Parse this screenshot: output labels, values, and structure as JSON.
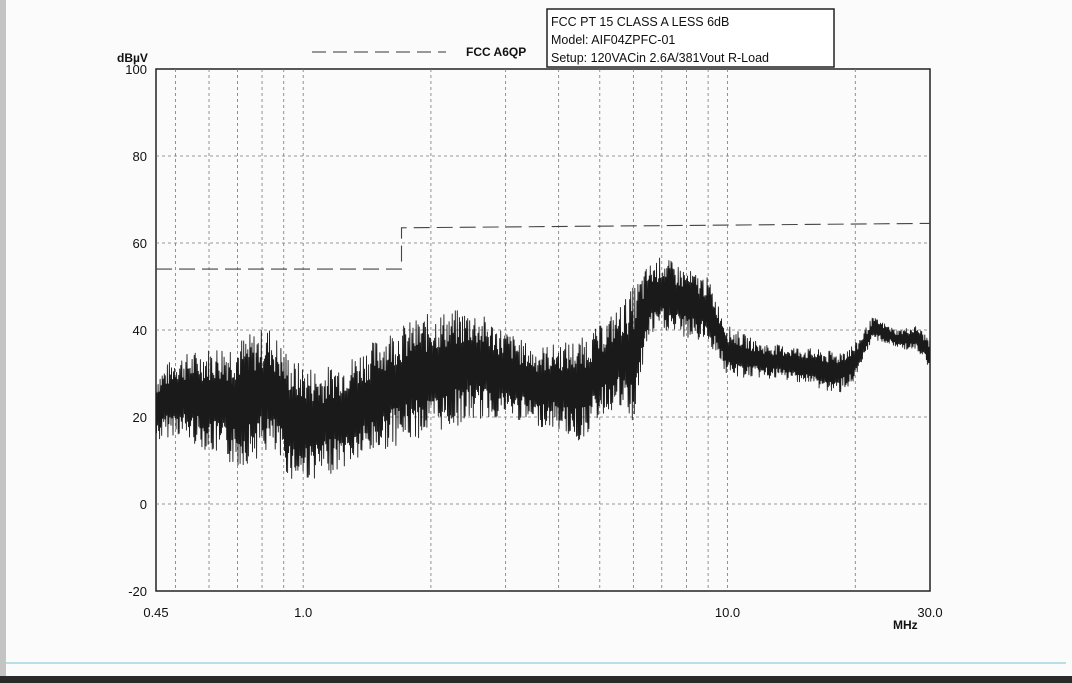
{
  "chart_data": {
    "type": "line",
    "ylabel": "dBµV",
    "xlabel": "MHz",
    "x_scale": "log",
    "xlim": [
      0.45,
      30.0
    ],
    "ylim": [
      -20,
      100
    ],
    "y_ticks": [
      "100",
      "80",
      "60",
      "40",
      "20",
      "0",
      "-20"
    ],
    "x_tick_labels": [
      {
        "value": 0.45,
        "label": "0.45"
      },
      {
        "value": 1.0,
        "label": "1.0"
      },
      {
        "value": 10.0,
        "label": "10.0"
      },
      {
        "value": 30.0,
        "label": "30.0"
      }
    ],
    "grid": true,
    "legend": {
      "label": "FCC A6QP",
      "style": "dashed",
      "placement": "top-center"
    },
    "info_box": [
      "FCC PT 15 CLASS A LESS 6dB",
      "Model: AIF04ZPFC-01",
      "Setup: 120VACin 2.6A/381Vout  R-Load"
    ],
    "series": [
      {
        "name": "FCC A6QP",
        "style": "dashed",
        "points": [
          {
            "x": 0.45,
            "y": 54
          },
          {
            "x": 1.705,
            "y": 54
          },
          {
            "x": 1.705,
            "y": 63.5
          },
          {
            "x": 30.0,
            "y": 64.5
          }
        ]
      },
      {
        "style": "solid",
        "envelope": [
          {
            "x": 0.45,
            "lo": 14,
            "hi": 30
          },
          {
            "x": 0.5,
            "lo": 16,
            "hi": 34
          },
          {
            "x": 0.6,
            "lo": 12,
            "hi": 36
          },
          {
            "x": 0.7,
            "lo": 8,
            "hi": 38
          },
          {
            "x": 0.83,
            "lo": 12,
            "hi": 41
          },
          {
            "x": 0.95,
            "lo": 5,
            "hi": 33
          },
          {
            "x": 1.1,
            "lo": 6,
            "hi": 31
          },
          {
            "x": 1.3,
            "lo": 9,
            "hi": 34
          },
          {
            "x": 1.6,
            "lo": 13,
            "hi": 40
          },
          {
            "x": 2.0,
            "lo": 16,
            "hi": 44
          },
          {
            "x": 2.5,
            "lo": 19,
            "hi": 45
          },
          {
            "x": 3.0,
            "lo": 20,
            "hi": 40
          },
          {
            "x": 3.5,
            "lo": 18,
            "hi": 36
          },
          {
            "x": 4.0,
            "lo": 17,
            "hi": 37
          },
          {
            "x": 4.5,
            "lo": 14,
            "hi": 38
          },
          {
            "x": 5.0,
            "lo": 20,
            "hi": 41
          },
          {
            "x": 5.5,
            "lo": 22,
            "hi": 45
          },
          {
            "x": 6.0,
            "lo": 18,
            "hi": 50
          },
          {
            "x": 6.5,
            "lo": 38,
            "hi": 55
          },
          {
            "x": 7.0,
            "lo": 40,
            "hi": 57
          },
          {
            "x": 8.0,
            "lo": 38,
            "hi": 54
          },
          {
            "x": 9.0,
            "lo": 37,
            "hi": 52
          },
          {
            "x": 9.5,
            "lo": 34,
            "hi": 46
          },
          {
            "x": 10.0,
            "lo": 29,
            "hi": 41
          },
          {
            "x": 12.0,
            "lo": 29,
            "hi": 37
          },
          {
            "x": 15.0,
            "lo": 28,
            "hi": 36
          },
          {
            "x": 18.0,
            "lo": 25,
            "hi": 35
          },
          {
            "x": 20.0,
            "lo": 28,
            "hi": 37
          },
          {
            "x": 22.0,
            "lo": 38,
            "hi": 43
          },
          {
            "x": 25.0,
            "lo": 36,
            "hi": 40
          },
          {
            "x": 28.0,
            "lo": 35,
            "hi": 41
          },
          {
            "x": 30.0,
            "lo": 31,
            "hi": 38
          }
        ]
      }
    ]
  }
}
